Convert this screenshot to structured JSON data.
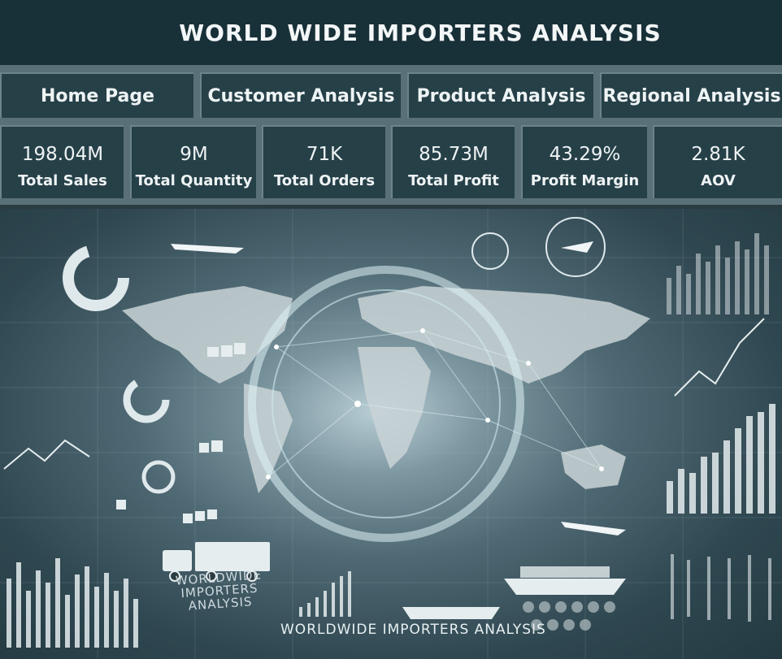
{
  "header": {
    "title": "WORLD WIDE IMPORTERS ANALYSIS"
  },
  "nav": {
    "home": "Home Page",
    "customer": "Customer Analysis",
    "product": "Product Analysis",
    "regional": "Regional Analysis"
  },
  "kpis": [
    {
      "value": "198.04M",
      "label": "Total Sales"
    },
    {
      "value": "9M",
      "label": "Total Quantity"
    },
    {
      "value": "71K",
      "label": "Total Orders"
    },
    {
      "value": "85.73M",
      "label": "Total Profit"
    },
    {
      "value": "43.29%",
      "label": "Profit Margin"
    },
    {
      "value": "2.81K",
      "label": "AOV"
    }
  ],
  "banner": {
    "logo_text": "WORLDWIDE IMPORTERS ANALYSIS",
    "caption": "WORLDWIDE IMPORTERS ANALYSIS"
  },
  "colors": {
    "title_bg": "#183038",
    "tile_bg": "#264048",
    "strip_bg": "#5a7079",
    "text": "#eef3f4"
  }
}
